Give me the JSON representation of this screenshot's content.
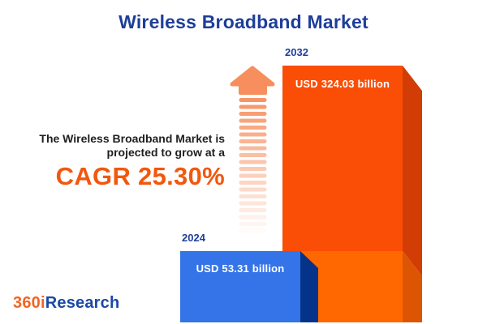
{
  "title": "Wireless Broadband Market",
  "annotation": {
    "line1": "The Wireless Broadband Market is",
    "line2": "projected to grow at a",
    "cagr_label": "CAGR 25.30%"
  },
  "chart_data": {
    "type": "bar",
    "title": "Wireless Broadband Market",
    "unit": "USD billion",
    "categories": [
      "2024",
      "2032"
    ],
    "values": [
      53.31,
      324.03
    ],
    "value_labels": [
      "USD 53.31 billion",
      "USD 324.03 billion"
    ],
    "cagr_percent": 25.3,
    "legend": "none",
    "grid": false,
    "style": "3d-infographic-bars",
    "colors": {
      "bar_2024_front": "#3474E8",
      "bar_2024_side": "#05338A",
      "bar_2032_front_upper": "#FA4E07",
      "bar_2032_front_lower": "#FF6700",
      "bar_2032_side_upper": "#D23D05",
      "bar_2032_side_lower": "#DC5503",
      "arrow": "#F78E5E",
      "accent_blue": "#1E3E99",
      "accent_orange": "#F2570E",
      "bar_text": "#FFFFFF"
    }
  },
  "logo": {
    "prefix": "360i",
    "suffix": "Research",
    "prefix_color": "#F26522",
    "suffix_color": "#1B49A5"
  }
}
